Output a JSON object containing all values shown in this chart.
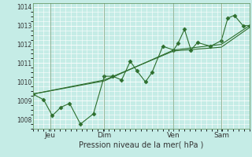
{
  "background_color": "#c5ece6",
  "plot_bg_color": "#c5ece6",
  "grid_color": "#ffffff",
  "line_color": "#2d6e2d",
  "marker_color": "#2d6e2d",
  "xlabel_text": "Pression niveau de la mer( hPa )",
  "ylim": [
    1007.5,
    1014.2
  ],
  "yticks": [
    1008,
    1009,
    1010,
    1011,
    1012,
    1013,
    1014
  ],
  "xtick_labels": [
    "Jeu",
    "Dim",
    "Ven",
    "Sam"
  ],
  "xtick_positions": [
    0.08,
    0.33,
    0.65,
    0.87
  ],
  "series1_x": [
    0.0,
    0.05,
    0.09,
    0.13,
    0.17,
    0.22,
    0.28,
    0.33,
    0.37,
    0.41,
    0.45,
    0.48,
    0.52,
    0.55,
    0.6,
    0.65,
    0.67,
    0.7,
    0.73,
    0.76,
    0.82,
    0.87,
    0.9,
    0.93,
    0.97,
    1.0
  ],
  "series1_y": [
    1009.35,
    1009.05,
    1008.2,
    1008.65,
    1008.85,
    1007.75,
    1008.3,
    1010.3,
    1010.3,
    1010.1,
    1011.1,
    1010.6,
    1010.0,
    1010.5,
    1011.9,
    1011.7,
    1012.05,
    1012.8,
    1011.7,
    1012.1,
    1011.9,
    1012.2,
    1013.4,
    1013.55,
    1013.0,
    1013.0
  ],
  "series2_x": [
    0.0,
    0.33,
    0.65,
    0.87,
    1.0
  ],
  "series2_y": [
    1009.35,
    1010.05,
    1011.7,
    1012.0,
    1013.0
  ],
  "series3_x": [
    0.0,
    0.33,
    0.65,
    0.87,
    1.0
  ],
  "series3_y": [
    1009.35,
    1010.1,
    1011.65,
    1011.85,
    1012.9
  ],
  "vline_positions": [
    0.08,
    0.33,
    0.65,
    0.87
  ]
}
